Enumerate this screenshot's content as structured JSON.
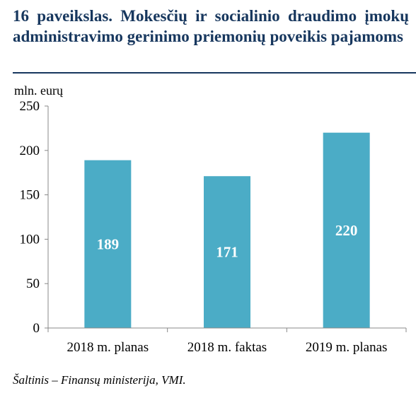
{
  "title": "16 paveikslas. Mokesčių ir socialinio draudimo įmokų administravimo gerinimo priemonių poveikis pajamoms",
  "source": "Šaltinis – Finansų ministerija, VMI.",
  "colors": {
    "bar": "#4bacc6",
    "title": "#17375e",
    "grid": "#d9d9d9",
    "axis": "#888888"
  },
  "chart_data": {
    "type": "bar",
    "title": "16 paveikslas. Mokesčių ir socialinio draudimo įmokų administravimo gerinimo priemonių poveikis pajamoms",
    "ylabel": "mln. eurų",
    "xlabel": "",
    "categories": [
      "2018 m. planas",
      "2018 m. faktas",
      "2019 m. planas"
    ],
    "values": [
      189,
      171,
      220
    ],
    "ylim": [
      0,
      250
    ],
    "yticks": [
      0,
      50,
      100,
      150,
      200,
      250
    ],
    "grid": false,
    "data_labels": true
  }
}
